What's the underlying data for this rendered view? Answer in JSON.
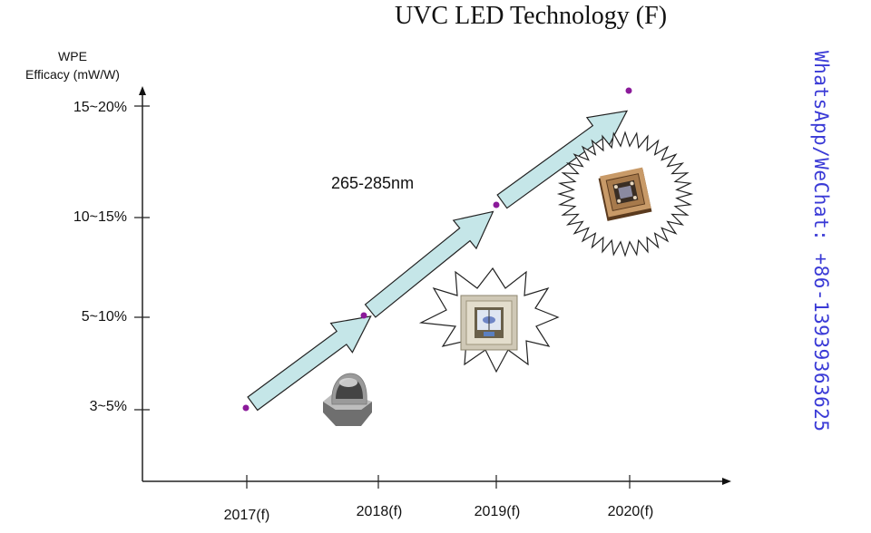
{
  "chart_data": {
    "type": "line",
    "title": "UVC LED Technology (F)",
    "xlabel": "",
    "ylabel": "WPE Efficacy (mW/W)",
    "categories": [
      "2017(f)",
      "2018(f)",
      "2019(f)",
      "2020(f)"
    ],
    "y_tick_labels": [
      "3~5%",
      "5~10%",
      "10~15%",
      "15~20%"
    ],
    "series": [
      {
        "name": "WPE Efficacy",
        "values": [
          "3~5%",
          "5~10%",
          "10~15%",
          "15~20%"
        ],
        "values_numeric_midpoint": [
          4,
          7.5,
          12.5,
          17.5
        ]
      }
    ],
    "annotations": [
      "265-285nm"
    ],
    "grid": false,
    "legend": "none",
    "arrow_color": "#c5e6e8",
    "point_color": "#8b1a9a"
  },
  "header": {
    "title": "UVC LED Technology (F)"
  },
  "axes": {
    "y_label_line1": "WPE",
    "y_label_line2": "Efficacy (mW/W)",
    "y_ticks": [
      {
        "label": "15~20%"
      },
      {
        "label": "10~15%"
      },
      {
        "label": "5~10%"
      },
      {
        "label": "3~5%"
      }
    ],
    "x_ticks": [
      {
        "label": "2017(f)"
      },
      {
        "label": "2018(f)"
      },
      {
        "label": "2019(f)"
      },
      {
        "label": "2020(f)"
      }
    ]
  },
  "annotation": {
    "wavelength": "265-285nm"
  },
  "products": [
    {
      "name": "dome-lens-uvc-led"
    },
    {
      "name": "flat-window-uvc-led"
    },
    {
      "name": "ceramic-smd-uvc-led"
    }
  ],
  "sidebar": {
    "contact": "WhatsApp/WeChat: +86-13939363625"
  }
}
